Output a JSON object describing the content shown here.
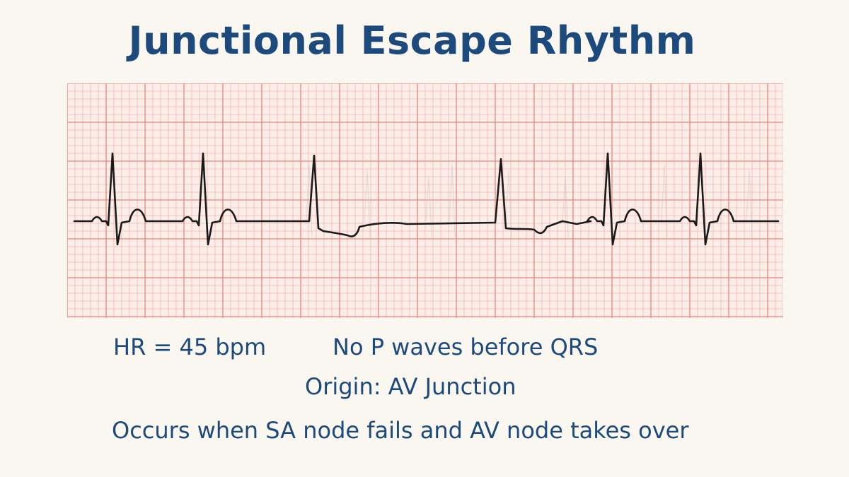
{
  "title": "Junctional Escape Rhythm",
  "captions": {
    "heart_rate": "HR = 45 bpm",
    "p_waves": "No P waves before QRS",
    "origin": "Origin: AV Junction",
    "mechanism": "Occurs when SA node fails and AV node takes over"
  },
  "colors": {
    "text": "#1d4a7c",
    "background": "#faf6f0",
    "grid_minor": "#f1b8b0",
    "grid_major": "#e8867c",
    "trace": "#1a1a1a"
  },
  "ecg": {
    "grid": "ECG paper, 5 small boxes per large box",
    "trace": "sinus complexes with P waves, followed by junctional escape complexes without preceding P waves"
  }
}
